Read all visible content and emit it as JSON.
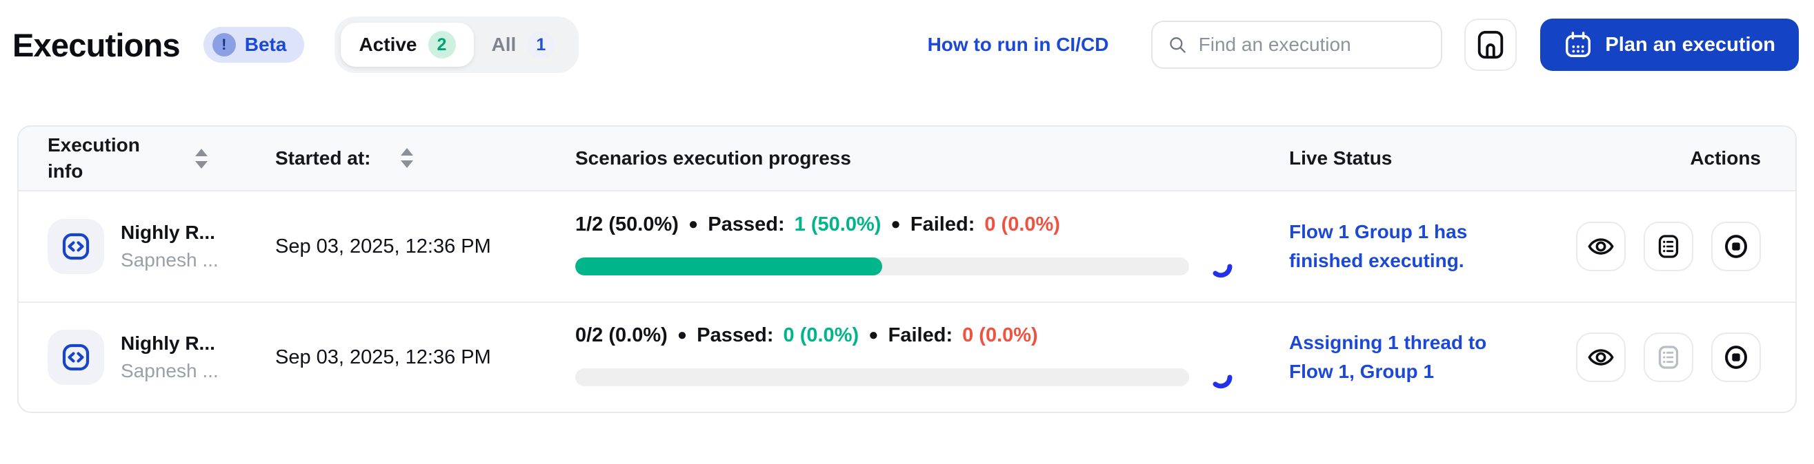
{
  "page": {
    "title": "Executions",
    "beta_badge": "Beta"
  },
  "tabs": [
    {
      "label": "Active",
      "count": "2",
      "active": true
    },
    {
      "label": "All",
      "count": "1",
      "active": false
    }
  ],
  "header_actions": {
    "cicd_link": "How to run in CI/CD",
    "search_placeholder": "Find an execution",
    "plan_button": "Plan an execution"
  },
  "table": {
    "columns": {
      "execution_info": "Execution info",
      "started_at": "Started at:",
      "progress": "Scenarios execution progress",
      "live_status": "Live Status",
      "actions": "Actions"
    },
    "rows": [
      {
        "title": "Nighly R...",
        "subtitle": "Sapnesh ...",
        "started_at": "Sep 03, 2025, 12:36 PM",
        "progress": {
          "total": "1/2 (50.0%)",
          "passed_label": "Passed:",
          "passed_value": "1 (50.0%)",
          "failed_label": "Failed:",
          "failed_value": "0 (0.0%)",
          "percent": 50
        },
        "live_status": "Flow 1 Group 1 has finished executing.",
        "report_disabled": false
      },
      {
        "title": "Nighly R...",
        "subtitle": "Sapnesh ...",
        "started_at": "Sep 03, 2025, 12:36 PM",
        "progress": {
          "total": "0/2 (0.0%)",
          "passed_label": "Passed:",
          "passed_value": "0 (0.0%)",
          "failed_label": "Failed:",
          "failed_value": "0 (0.0%)",
          "percent": 0
        },
        "live_status": "Assigning 1 thread to Flow 1, Group 1",
        "report_disabled": true
      }
    ]
  },
  "icons": {
    "beta": "exclamation-circle-icon",
    "search": "search-icon",
    "panel": "panel-layout-icon",
    "plan": "calendar-icon",
    "sort": "sort-arrows-icon",
    "execution": "code-brackets-icon",
    "view": "eye-icon",
    "report": "list-report-icon",
    "stop": "stop-circle-icon",
    "running": "spinner-icon"
  },
  "colors": {
    "accent_blue": "#1443c4",
    "link_blue": "#1b49d6",
    "success_green": "#00b589",
    "fail_red": "#ef5340",
    "spinner_blue": "#2430e8",
    "beta_bg": "#dde3f8",
    "header_bg": "#f8f9fa"
  }
}
